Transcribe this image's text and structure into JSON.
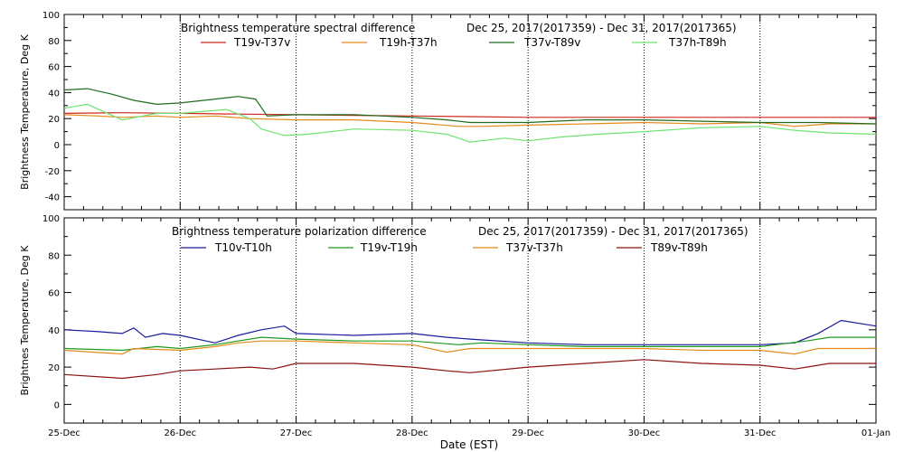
{
  "figure": {
    "xaxis_label": "Date (EST)",
    "x_tick_labels": [
      "25-Dec",
      "26-Dec",
      "27-Dec",
      "28-Dec",
      "29-Dec",
      "30-Dec",
      "31-Dec",
      "01-Jan"
    ]
  },
  "chart_data": [
    {
      "type": "line",
      "title": "Brightness temperature spectral difference",
      "date_range": "Dec 25, 2017(2017359) - Dec 31, 2017(2017365)",
      "ylabel": "Brightness Temperature, Deg K",
      "xlabel": "",
      "x_unit": "days since 25-Dec",
      "xlim": [
        0,
        7
      ],
      "ylim": [
        -50,
        100
      ],
      "yticks": [
        -40,
        -20,
        0,
        20,
        40,
        60,
        80,
        100
      ],
      "grid": "vertical dotted at each day",
      "legend_position": "top",
      "series": [
        {
          "name": "T19v-T37v",
          "color": "#cc2a1c",
          "points": [
            [
              0,
              24
            ],
            [
              0.5,
              24.5
            ],
            [
              1,
              24
            ],
            [
              1.5,
              23.5
            ],
            [
              2,
              23
            ],
            [
              2.5,
              22.5
            ],
            [
              3,
              22
            ],
            [
              3.5,
              21.5
            ],
            [
              4,
              21
            ],
            [
              4.5,
              21
            ],
            [
              5,
              21
            ],
            [
              5.5,
              21
            ],
            [
              6,
              21
            ],
            [
              6.5,
              21
            ],
            [
              7,
              21
            ]
          ]
        },
        {
          "name": "T19h-T37h",
          "color": "#e58a1c",
          "points": [
            [
              0,
              23
            ],
            [
              0.3,
              22
            ],
            [
              0.5,
              21
            ],
            [
              0.8,
              22
            ],
            [
              1,
              21
            ],
            [
              1.3,
              22
            ],
            [
              1.6,
              20
            ],
            [
              2,
              19
            ],
            [
              2.5,
              19
            ],
            [
              3,
              17
            ],
            [
              3.4,
              14
            ],
            [
              3.6,
              14
            ],
            [
              4,
              15
            ],
            [
              4.5,
              16
            ],
            [
              5,
              17
            ],
            [
              5.5,
              16
            ],
            [
              6,
              17
            ],
            [
              6.3,
              14
            ],
            [
              6.6,
              16
            ],
            [
              7,
              16
            ]
          ]
        },
        {
          "name": "T37v-T89v",
          "color": "#1f6b1f",
          "points": [
            [
              0,
              42
            ],
            [
              0.2,
              43
            ],
            [
              0.4,
              39
            ],
            [
              0.6,
              34
            ],
            [
              0.8,
              31
            ],
            [
              1,
              32
            ],
            [
              1.3,
              35
            ],
            [
              1.5,
              37
            ],
            [
              1.65,
              35
            ],
            [
              1.75,
              22
            ],
            [
              2,
              23
            ],
            [
              2.5,
              23
            ],
            [
              3,
              21
            ],
            [
              3.3,
              19
            ],
            [
              3.5,
              17
            ],
            [
              4,
              17
            ],
            [
              4.5,
              19
            ],
            [
              5,
              19
            ],
            [
              5.5,
              18
            ],
            [
              6,
              17
            ],
            [
              6.5,
              17
            ],
            [
              7,
              16
            ]
          ]
        },
        {
          "name": "T37h-T89h",
          "color": "#6fe36f",
          "points": [
            [
              0,
              28
            ],
            [
              0.2,
              31
            ],
            [
              0.5,
              19
            ],
            [
              0.8,
              24
            ],
            [
              1,
              24
            ],
            [
              1.4,
              27
            ],
            [
              1.6,
              20
            ],
            [
              1.7,
              12
            ],
            [
              1.9,
              7
            ],
            [
              2.1,
              8
            ],
            [
              2.5,
              12
            ],
            [
              3,
              11
            ],
            [
              3.3,
              8
            ],
            [
              3.5,
              2
            ],
            [
              3.8,
              5
            ],
            [
              4,
              3
            ],
            [
              4.3,
              6
            ],
            [
              4.6,
              8
            ],
            [
              5,
              10
            ],
            [
              5.5,
              13
            ],
            [
              6,
              14
            ],
            [
              6.3,
              11
            ],
            [
              6.6,
              9
            ],
            [
              7,
              8
            ]
          ]
        }
      ]
    },
    {
      "type": "line",
      "title": "Brightness temperature polarization difference",
      "date_range": "Dec 25, 2017(2017359) - Dec 31, 2017(2017365)",
      "ylabel": "Brightnes Temperature, Deg K",
      "xlabel": "Date (EST)",
      "x_unit": "days since 25-Dec",
      "xlim": [
        0,
        7
      ],
      "ylim": [
        -10,
        100
      ],
      "yticks": [
        0,
        20,
        40,
        60,
        80,
        100
      ],
      "grid": "vertical dotted at each day",
      "legend_position": "top",
      "series": [
        {
          "name": "T10v-T10h",
          "color": "#1a1a9e",
          "points": [
            [
              0,
              40
            ],
            [
              0.3,
              39
            ],
            [
              0.5,
              38
            ],
            [
              0.6,
              41
            ],
            [
              0.7,
              36
            ],
            [
              0.85,
              38
            ],
            [
              1,
              37
            ],
            [
              1.3,
              33
            ],
            [
              1.5,
              37
            ],
            [
              1.7,
              40
            ],
            [
              1.9,
              42
            ],
            [
              2,
              38
            ],
            [
              2.5,
              37
            ],
            [
              3,
              38
            ],
            [
              3.3,
              36
            ],
            [
              3.5,
              35
            ],
            [
              4,
              33
            ],
            [
              4.5,
              32
            ],
            [
              5,
              32
            ],
            [
              5.5,
              32
            ],
            [
              6,
              32
            ],
            [
              6.3,
              33
            ],
            [
              6.5,
              38
            ],
            [
              6.7,
              45
            ],
            [
              7,
              42
            ]
          ]
        },
        {
          "name": "T19v-T19h",
          "color": "#1e9a1e",
          "points": [
            [
              0,
              30
            ],
            [
              0.5,
              29
            ],
            [
              0.8,
              31
            ],
            [
              1,
              30
            ],
            [
              1.3,
              32
            ],
            [
              1.5,
              34
            ],
            [
              1.7,
              36
            ],
            [
              2,
              35
            ],
            [
              2.5,
              34
            ],
            [
              3,
              34
            ],
            [
              3.4,
              32
            ],
            [
              3.6,
              33
            ],
            [
              4,
              32
            ],
            [
              4.5,
              31
            ],
            [
              5,
              31
            ],
            [
              5.5,
              31
            ],
            [
              6,
              31
            ],
            [
              6.4,
              34
            ],
            [
              6.6,
              36
            ],
            [
              7,
              36
            ]
          ]
        },
        {
          "name": "T37v-T37h",
          "color": "#e58a1c",
          "points": [
            [
              0,
              29
            ],
            [
              0.5,
              27
            ],
            [
              0.6,
              30
            ],
            [
              1,
              29
            ],
            [
              1.3,
              31
            ],
            [
              1.5,
              33
            ],
            [
              1.7,
              34
            ],
            [
              2,
              34
            ],
            [
              2.5,
              33
            ],
            [
              3,
              32
            ],
            [
              3.3,
              28
            ],
            [
              3.5,
              30
            ],
            [
              4,
              30
            ],
            [
              4.5,
              30
            ],
            [
              5,
              30
            ],
            [
              5.5,
              29
            ],
            [
              6,
              29
            ],
            [
              6.3,
              27
            ],
            [
              6.5,
              30
            ],
            [
              7,
              30
            ]
          ]
        },
        {
          "name": "T89v-T89h",
          "color": "#8b1010",
          "points": [
            [
              0,
              16
            ],
            [
              0.5,
              14
            ],
            [
              0.8,
              16
            ],
            [
              1,
              18
            ],
            [
              1.3,
              19
            ],
            [
              1.6,
              20
            ],
            [
              1.8,
              19
            ],
            [
              2,
              22
            ],
            [
              2.5,
              22
            ],
            [
              3,
              20
            ],
            [
              3.3,
              18
            ],
            [
              3.5,
              17
            ],
            [
              4,
              20
            ],
            [
              4.5,
              22
            ],
            [
              5,
              24
            ],
            [
              5.5,
              22
            ],
            [
              6,
              21
            ],
            [
              6.3,
              19
            ],
            [
              6.6,
              22
            ],
            [
              7,
              22
            ]
          ]
        }
      ]
    }
  ]
}
